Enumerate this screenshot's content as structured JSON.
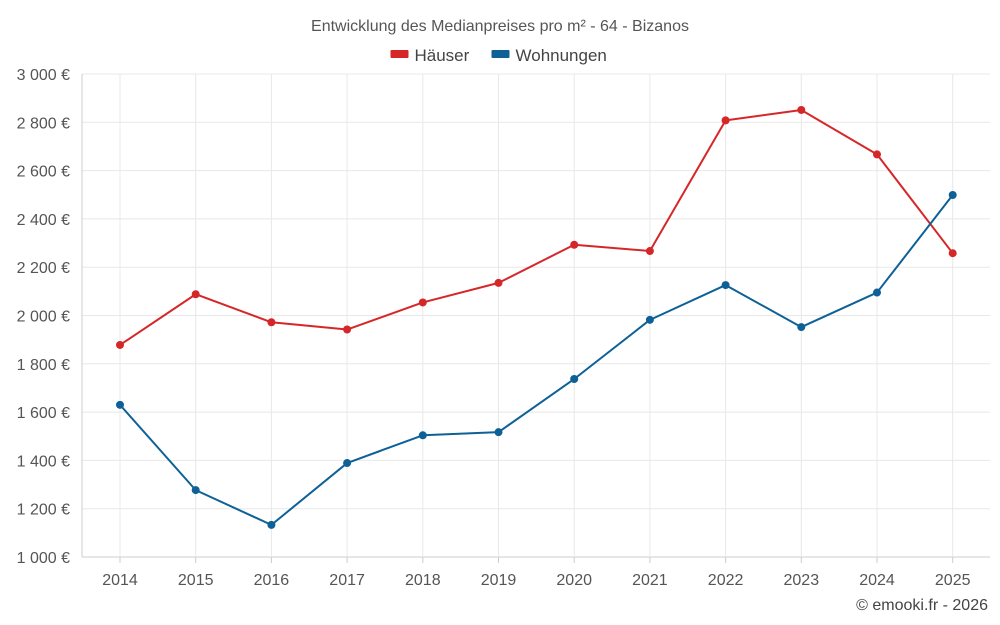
{
  "chart_data": {
    "type": "line",
    "title": "Entwicklung des Medianpreises pro m² - 64 - Bizanos",
    "categories": [
      "2014",
      "2015",
      "2016",
      "2017",
      "2018",
      "2019",
      "2020",
      "2021",
      "2022",
      "2023",
      "2024",
      "2025"
    ],
    "ylim": [
      1000,
      3000
    ],
    "yticks": [
      1000,
      1200,
      1400,
      1600,
      1800,
      2000,
      2200,
      2400,
      2600,
      2800,
      3000
    ],
    "ytick_labels": [
      "1 000 €",
      "1 200 €",
      "1 400 €",
      "1 600 €",
      "1 800 €",
      "2 000 €",
      "2 200 €",
      "2 400 €",
      "2 600 €",
      "2 800 €",
      "3 000 €"
    ],
    "legend_position": "top-center",
    "grid": true,
    "series": [
      {
        "name": "Häuser",
        "color": "#d62728",
        "values": [
          1878,
          2088,
          1972,
          1942,
          2054,
          2135,
          2293,
          2267,
          2808,
          2851,
          2667,
          2258
        ]
      },
      {
        "name": "Wohnungen",
        "color": "#0e6196",
        "values": [
          1630,
          1277,
          1133,
          1389,
          1504,
          1517,
          1737,
          1982,
          2126,
          1952,
          2095,
          2499
        ]
      }
    ]
  },
  "footer": "© emooki.fr - 2026"
}
